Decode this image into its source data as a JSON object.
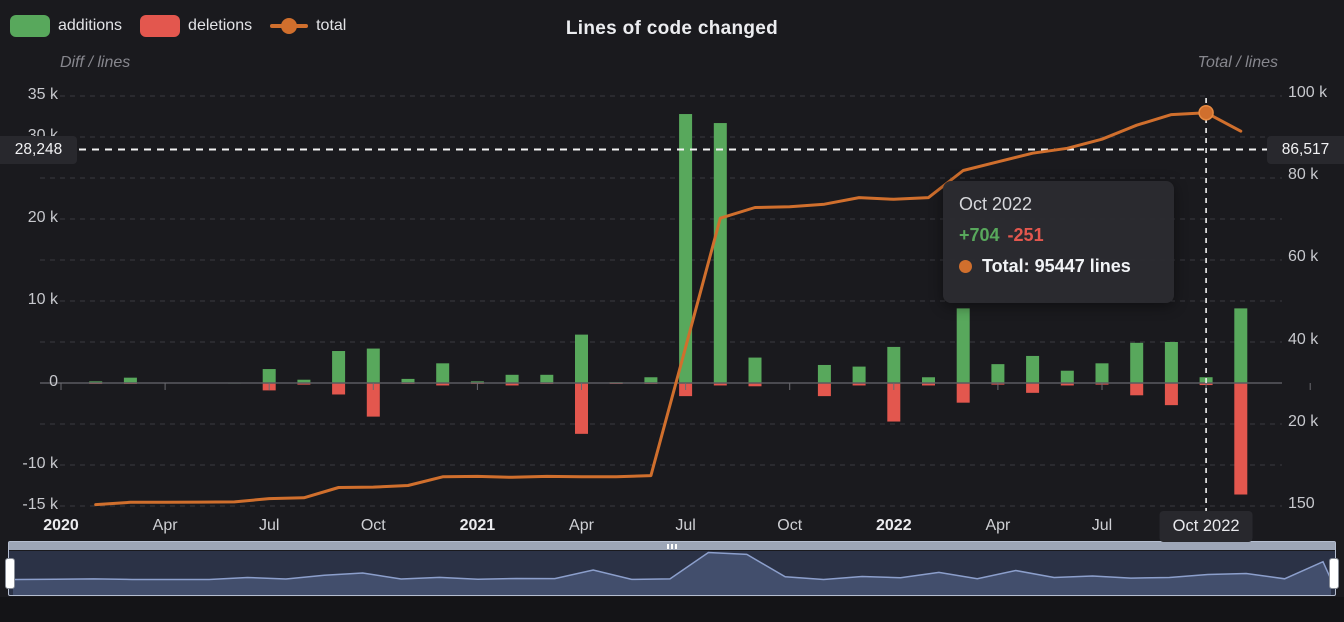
{
  "header": {
    "title": "Lines of code changed",
    "left_axis_name": "Diff / lines",
    "right_axis_name": "Total / lines"
  },
  "legend": [
    {
      "label": "additions",
      "type": "rect",
      "color": "#58a85c"
    },
    {
      "label": "deletions",
      "type": "rect",
      "color": "#e3574e"
    },
    {
      "label": "total",
      "type": "line-dot",
      "color": "#d06f2d"
    }
  ],
  "colors": {
    "additions": "#58a85c",
    "deletions": "#e3574e",
    "total": "#d06f2d",
    "crosshair": "#f2f2f2",
    "grid": "#3a3a40",
    "zero_axis": "#5a5a60"
  },
  "tooltip": {
    "title": "Oct 2022",
    "additions": "+704",
    "deletions": "-251",
    "total": "Total: 95447 lines"
  },
  "crosshair": {
    "left_label": "28,248",
    "right_label": "86,517",
    "h_value_right_axis": 86517,
    "v_month_index": 33,
    "v_month_label": "Oct 2022"
  },
  "highlight_point": {
    "month_index": 33,
    "total": 95447
  },
  "chart_data": {
    "type": "bar",
    "title": "Lines of code changed",
    "combo": [
      "bar: additions (left axis)",
      "bar: deletions (left axis)",
      "line: total (right axis)"
    ],
    "categories": [
      "Jan 2020",
      "Feb 2020",
      "Mar 2020",
      "Apr 2020",
      "May 2020",
      "Jun 2020",
      "Jul 2020",
      "Aug 2020",
      "Sep 2020",
      "Oct 2020",
      "Nov 2020",
      "Dec 2020",
      "Jan 2021",
      "Feb 2021",
      "Mar 2021",
      "Apr 2021",
      "May 2021",
      "Jun 2021",
      "Jul 2021",
      "Aug 2021",
      "Sep 2021",
      "Oct 2021",
      "Nov 2021",
      "Dec 2021",
      "Jan 2022",
      "Feb 2022",
      "Mar 2022",
      "Apr 2022",
      "May 2022",
      "Jun 2022",
      "Jul 2022",
      "Aug 2022",
      "Sep 2022",
      "Oct 2022",
      "Nov 2022"
    ],
    "series": [
      {
        "name": "additions",
        "axis": "left",
        "values": [
          0,
          200,
          650,
          0,
          0,
          50,
          1700,
          400,
          3900,
          4200,
          500,
          2400,
          200,
          1000,
          1000,
          5900,
          100,
          700,
          32800,
          31700,
          3100,
          0,
          2200,
          2000,
          4400,
          700,
          9100,
          2300,
          3300,
          1500,
          2400,
          4900,
          5000,
          704,
          9100
        ]
      },
      {
        "name": "deletions",
        "axis": "left",
        "values": [
          0,
          50,
          100,
          0,
          0,
          0,
          900,
          200,
          1400,
          4100,
          100,
          300,
          100,
          300,
          100,
          6200,
          50,
          100,
          1600,
          300,
          400,
          0,
          1600,
          300,
          4700,
          300,
          2400,
          200,
          1200,
          300,
          200,
          1500,
          2700,
          251,
          13600
        ]
      },
      {
        "name": "total",
        "axis": "right",
        "values": [
          null,
          150,
          700,
          700,
          750,
          800,
          1600,
          1800,
          4300,
          4400,
          4800,
          6900,
          7000,
          6800,
          7000,
          6900,
          6900,
          7200,
          38400,
          69800,
          72400,
          72600,
          73200,
          74800,
          74400,
          74800,
          81400,
          83500,
          85600,
          86800,
          89000,
          92400,
          94994,
          95447,
          90947
        ]
      }
    ],
    "left_axis": {
      "label": "Diff / lines",
      "ticks": [
        {
          "label": "35 k",
          "value": 35000
        },
        {
          "label": "30 k",
          "value": 30000
        },
        {
          "label": "20 k",
          "value": 20000
        },
        {
          "label": "10 k",
          "value": 10000
        },
        {
          "label": "0",
          "value": 0
        },
        {
          "label": "-10 k",
          "value": -10000
        },
        {
          "label": "-15 k",
          "value": -15000
        }
      ],
      "range": [
        -15000,
        35000
      ],
      "grid_step": 5000,
      "grid": "dashed"
    },
    "right_axis": {
      "label": "Total / lines",
      "ticks": [
        {
          "label": "100 k",
          "value": 100000
        },
        {
          "label": "80 k",
          "value": 80000
        },
        {
          "label": "60 k",
          "value": 60000
        },
        {
          "label": "40 k",
          "value": 40000
        },
        {
          "label": "20 k",
          "value": 20000
        },
        {
          "label": "150",
          "value": 150
        }
      ],
      "range": [
        150,
        100000
      ]
    },
    "x_axis_labels": [
      {
        "index": 0,
        "label": "2020",
        "bold": true
      },
      {
        "index": 3,
        "label": "Apr",
        "bold": false
      },
      {
        "index": 6,
        "label": "Jul",
        "bold": false
      },
      {
        "index": 9,
        "label": "Oct",
        "bold": false
      },
      {
        "index": 12,
        "label": "2021",
        "bold": true
      },
      {
        "index": 15,
        "label": "Apr",
        "bold": false
      },
      {
        "index": 18,
        "label": "Jul",
        "bold": false
      },
      {
        "index": 21,
        "label": "Oct",
        "bold": false
      },
      {
        "index": 24,
        "label": "2022",
        "bold": true
      },
      {
        "index": 27,
        "label": "Apr",
        "bold": false
      },
      {
        "index": 30,
        "label": "Jul",
        "bold": false
      }
    ],
    "legend_position": "top-left",
    "tooltip_shown_for": "Oct 2022"
  }
}
